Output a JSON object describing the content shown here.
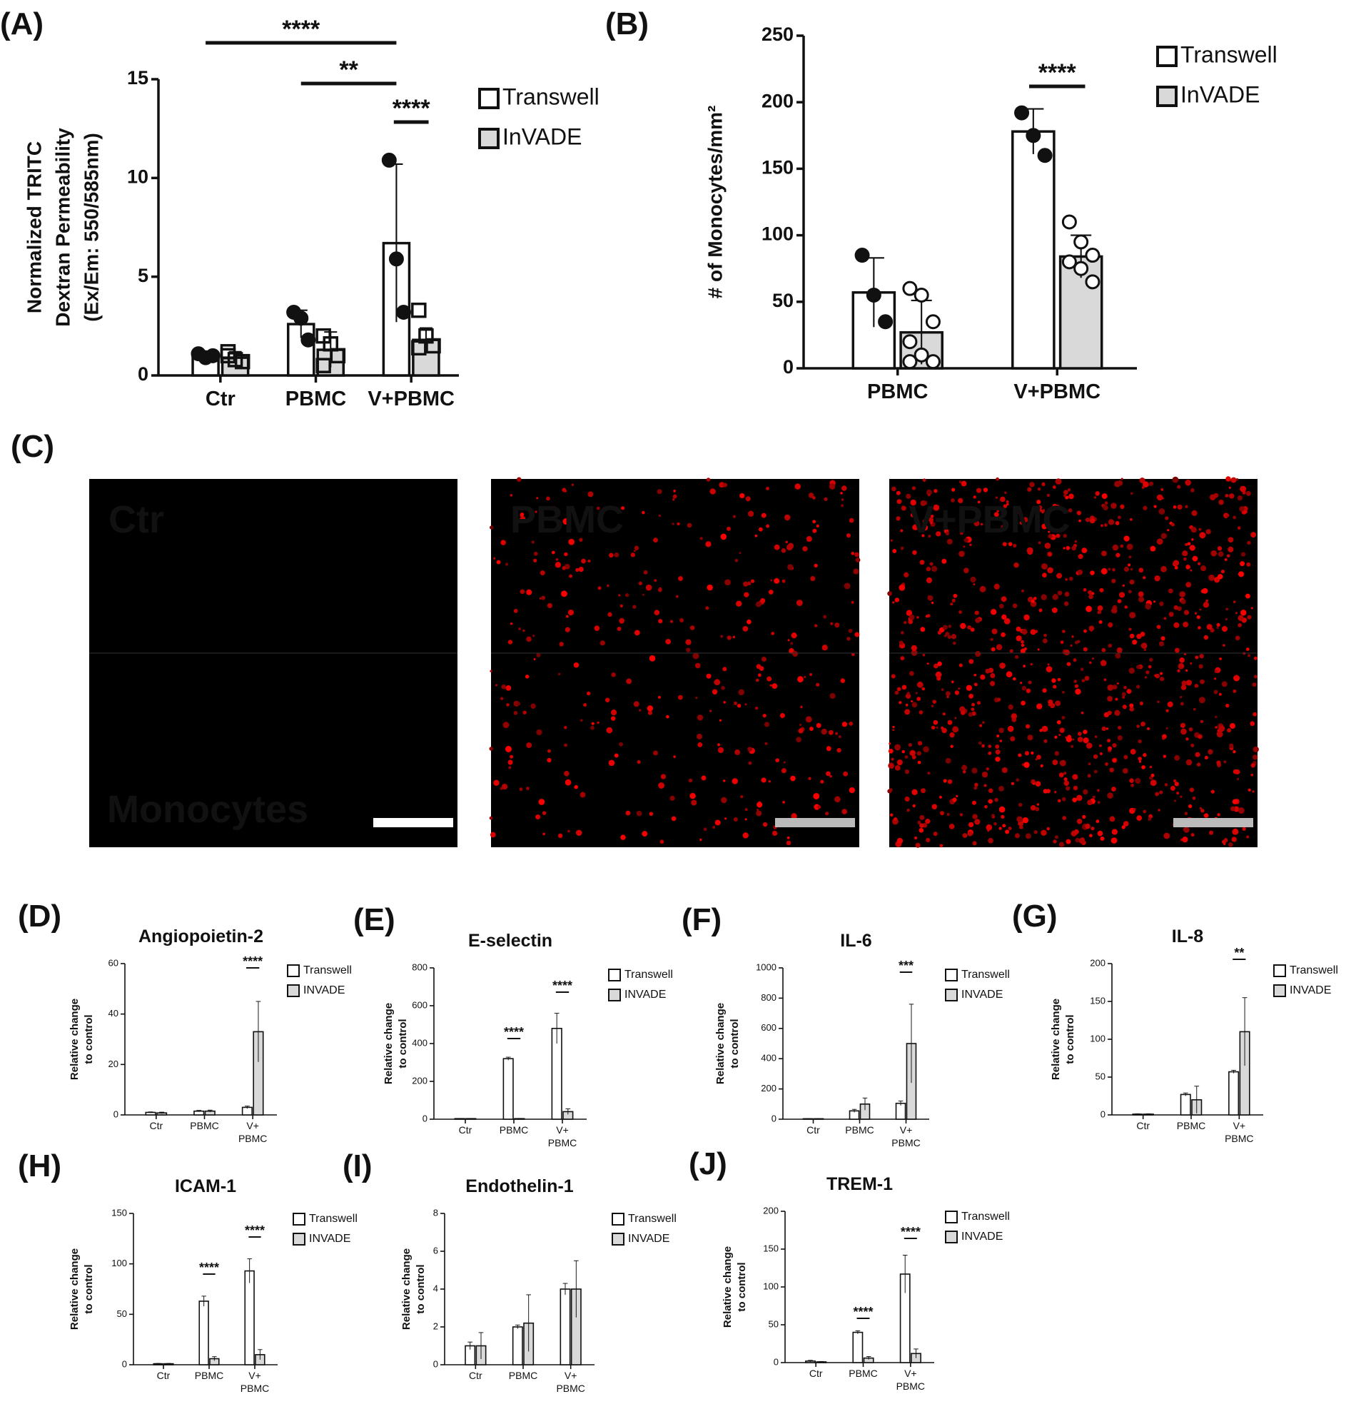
{
  "chart_data": [
    {
      "type": "bar",
      "panel": "(A)",
      "ylabel": [
        "Normalized TRITC",
        "Dextran Permeability",
        "(Ex/Em: 550/585nm)"
      ],
      "categories": [
        "Ctr",
        "PBMC",
        "V+PBMC"
      ],
      "series": [
        {
          "name": "Transwell",
          "color": "#ffffff",
          "marker": "circle",
          "values": [
            1.0,
            2.6,
            6.7
          ],
          "errors": [
            0.2,
            0.7,
            4.0
          ],
          "points": [
            [
              1.1,
              0.9,
              1.0
            ],
            [
              3.2,
              2.9,
              1.8
            ],
            [
              10.9,
              5.9,
              3.2
            ]
          ]
        },
        {
          "name": "InVADE",
          "color": "#d9d9d9",
          "marker": "square",
          "values": [
            0.9,
            1.3,
            1.8
          ],
          "errors": [
            0.3,
            0.9,
            0.6
          ],
          "points": [
            [
              1.2,
              0.8,
              0.7,
              1.0
            ],
            [
              2.0,
              1.6,
              1.0,
              0.5
            ],
            [
              3.3,
              2.0,
              1.5,
              1.4
            ]
          ]
        }
      ],
      "ylim": [
        0,
        15
      ],
      "yticks": [
        0,
        5,
        10,
        15
      ],
      "annotations": [
        "****",
        "**",
        "****"
      ]
    },
    {
      "type": "bar",
      "panel": "(B)",
      "ylabel": [
        "# of Monocytes/mm²"
      ],
      "categories": [
        "PBMC",
        "V+PBMC"
      ],
      "series": [
        {
          "name": "Transwell",
          "color": "#ffffff",
          "marker": "circle",
          "values": [
            57,
            178
          ],
          "errors": [
            26,
            17
          ],
          "points": [
            [
              85,
              55,
              35
            ],
            [
              192,
              175,
              160
            ]
          ]
        },
        {
          "name": "InVADE",
          "color": "#d9d9d9",
          "marker": "open-circle",
          "values": [
            27,
            84
          ],
          "errors": [
            24,
            16
          ],
          "points": [
            [
              60,
              55,
              35,
              20,
              10,
              5,
              5
            ],
            [
              110,
              95,
              85,
              80,
              75,
              65
            ]
          ]
        }
      ],
      "ylim": [
        0,
        250
      ],
      "yticks": [
        0,
        50,
        100,
        150,
        200,
        250
      ],
      "annotations": [
        "****"
      ]
    },
    {
      "type": "bar",
      "panel": "(D)",
      "title": "Angiopoietin-2",
      "ylabel": [
        "Relative change",
        "to control"
      ],
      "categories": [
        "Ctr",
        "PBMC",
        "V+PBMC"
      ],
      "series": [
        {
          "name": "Transwell",
          "color": "#ffffff",
          "values": [
            1,
            1.5,
            3
          ],
          "errors": [
            0.2,
            0.3,
            0.5
          ]
        },
        {
          "name": "INVADE",
          "color": "#d9d9d9",
          "values": [
            0.8,
            1.5,
            33
          ],
          "errors": [
            0.3,
            0.4,
            12
          ]
        }
      ],
      "ylim": [
        0,
        60
      ],
      "yticks": [
        0,
        20,
        40,
        60
      ],
      "annotations": [
        "****"
      ]
    },
    {
      "type": "bar",
      "panel": "(E)",
      "title": "E-selectin",
      "ylabel": [
        "Relative change",
        "to control"
      ],
      "categories": [
        "Ctr",
        "PBMC",
        "V+PBMC"
      ],
      "series": [
        {
          "name": "Transwell",
          "color": "#ffffff",
          "values": [
            3,
            320,
            480
          ],
          "errors": [
            1,
            8,
            80
          ]
        },
        {
          "name": "INVADE",
          "color": "#d9d9d9",
          "values": [
            3,
            3,
            40
          ],
          "errors": [
            1,
            1,
            15
          ]
        }
      ],
      "ylim": [
        0,
        800
      ],
      "yticks": [
        0,
        200,
        400,
        600,
        800
      ],
      "annotations": [
        "****",
        "****"
      ]
    },
    {
      "type": "bar",
      "panel": "(F)",
      "title": "IL-6",
      "ylabel": [
        "Relative change",
        "to control"
      ],
      "categories": [
        "Ctr",
        "PBMC",
        "V+PBMC"
      ],
      "series": [
        {
          "name": "Transwell",
          "color": "#ffffff",
          "values": [
            3,
            55,
            105
          ],
          "errors": [
            1,
            10,
            15
          ]
        },
        {
          "name": "INVADE",
          "color": "#d9d9d9",
          "values": [
            3,
            100,
            500
          ],
          "errors": [
            1,
            40,
            260
          ]
        }
      ],
      "ylim": [
        0,
        1000
      ],
      "yticks": [
        0,
        200,
        400,
        600,
        800,
        1000
      ],
      "annotations": [
        "***"
      ]
    },
    {
      "type": "bar",
      "panel": "(G)",
      "title": "IL-8",
      "ylabel": [
        "Relative change",
        "to control"
      ],
      "categories": [
        "Ctr",
        "PBMC",
        "V+PBMC"
      ],
      "series": [
        {
          "name": "Transwell",
          "color": "#ffffff",
          "values": [
            1,
            27,
            57
          ],
          "errors": [
            0.5,
            2,
            2
          ]
        },
        {
          "name": "INVADE",
          "color": "#d9d9d9",
          "values": [
            1,
            20,
            110
          ],
          "errors": [
            0.5,
            18,
            45
          ]
        }
      ],
      "ylim": [
        0,
        200
      ],
      "yticks": [
        0,
        50,
        100,
        150,
        200
      ],
      "annotations": [
        "**"
      ]
    },
    {
      "type": "bar",
      "panel": "(H)",
      "title": "ICAM-1",
      "ylabel": [
        "Relative change",
        "to control"
      ],
      "categories": [
        "Ctr",
        "PBMC",
        "V+PBMC"
      ],
      "series": [
        {
          "name": "Transwell",
          "color": "#ffffff",
          "values": [
            1,
            63,
            93
          ],
          "errors": [
            0.3,
            5,
            12
          ]
        },
        {
          "name": "INVADE",
          "color": "#d9d9d9",
          "values": [
            1,
            6,
            10
          ],
          "errors": [
            0.3,
            2,
            5
          ]
        }
      ],
      "ylim": [
        0,
        150
      ],
      "yticks": [
        0,
        50,
        100,
        150
      ],
      "annotations": [
        "****",
        "****"
      ]
    },
    {
      "type": "bar",
      "panel": "(I)",
      "title": "Endothelin-1",
      "ylabel": [
        "Relative change",
        "to control"
      ],
      "categories": [
        "Ctr",
        "PBMC",
        "V+PBMC"
      ],
      "series": [
        {
          "name": "Transwell",
          "color": "#ffffff",
          "values": [
            1,
            2,
            4
          ],
          "errors": [
            0.2,
            0.1,
            0.3
          ]
        },
        {
          "name": "INVADE",
          "color": "#d9d9d9",
          "values": [
            1,
            2.2,
            4
          ],
          "errors": [
            0.7,
            1.5,
            1.5
          ]
        }
      ],
      "ylim": [
        0,
        8
      ],
      "yticks": [
        0,
        2,
        4,
        6,
        8
      ],
      "annotations": []
    },
    {
      "type": "bar",
      "panel": "(J)",
      "title": "TREM-1",
      "ylabel": [
        "Relative change",
        "to control"
      ],
      "categories": [
        "Ctr",
        "PBMC",
        "V+PBMC"
      ],
      "series": [
        {
          "name": "Transwell",
          "color": "#ffffff",
          "values": [
            2,
            40,
            117
          ],
          "errors": [
            1,
            2,
            25
          ]
        },
        {
          "name": "INVADE",
          "color": "#d9d9d9",
          "values": [
            1,
            6,
            12
          ],
          "errors": [
            0.5,
            2,
            6
          ]
        }
      ],
      "ylim": [
        0,
        200
      ],
      "yticks": [
        0,
        50,
        100,
        150,
        200
      ],
      "annotations": [
        "****",
        "****"
      ]
    }
  ],
  "images": {
    "panel": "(C)",
    "labels": [
      "Ctr",
      "PBMC",
      "V+PBMC"
    ],
    "stain": "Monocytes"
  }
}
